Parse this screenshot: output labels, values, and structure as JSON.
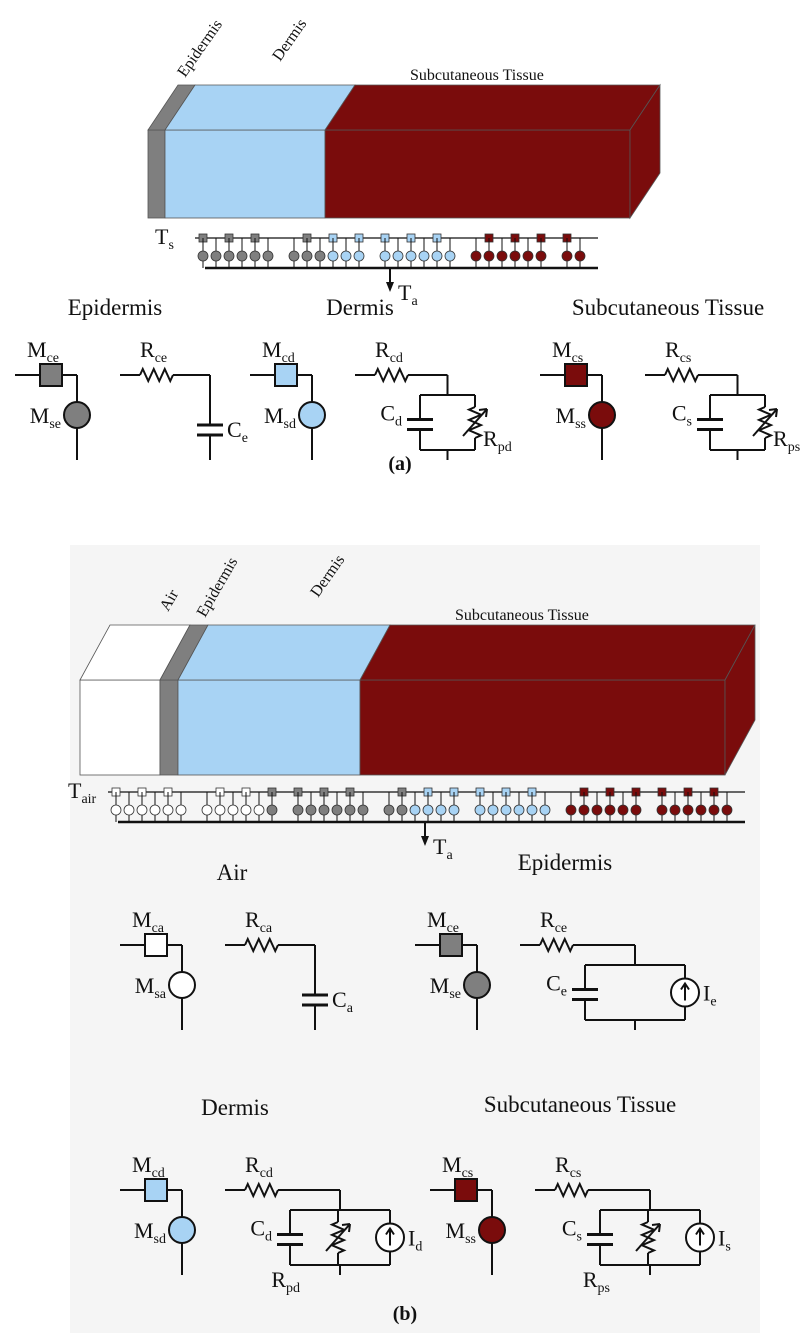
{
  "panel_a": {
    "layers": [
      "Epidermis",
      "Dermis",
      "Subcutaneous Tissue"
    ],
    "surface_node": {
      "base": "T",
      "sub": "s"
    },
    "ambient_node": {
      "base": "T",
      "sub": "a"
    },
    "groups": [
      {
        "title": "Epidermis",
        "labels": [
          {
            "base": "M",
            "sub": "ce"
          },
          {
            "base": "M",
            "sub": "se"
          },
          {
            "base": "R",
            "sub": "ce"
          },
          {
            "base": "C",
            "sub": "e"
          }
        ]
      },
      {
        "title": "Dermis",
        "labels": [
          {
            "base": "M",
            "sub": "cd"
          },
          {
            "base": "M",
            "sub": "sd"
          },
          {
            "base": "R",
            "sub": "cd"
          },
          {
            "base": "C",
            "sub": "d"
          },
          {
            "base": "R",
            "sub": "pd"
          }
        ]
      },
      {
        "title": "Subcutaneous Tissue",
        "labels": [
          {
            "base": "M",
            "sub": "cs"
          },
          {
            "base": "M",
            "sub": "ss"
          },
          {
            "base": "R",
            "sub": "cs"
          },
          {
            "base": "C",
            "sub": "s"
          },
          {
            "base": "R",
            "sub": "ps"
          }
        ]
      }
    ],
    "caption": "(a)"
  },
  "panel_b": {
    "layers": [
      "Air",
      "Epidermis",
      "Dermis",
      "Subcutaneous Tissue"
    ],
    "surface_node": {
      "base": "T",
      "sub": "air"
    },
    "ambient_node": {
      "base": "T",
      "sub": "a"
    },
    "groups": [
      {
        "title": "Air",
        "labels": [
          {
            "base": "M",
            "sub": "ca"
          },
          {
            "base": "M",
            "sub": "sa"
          },
          {
            "base": "R",
            "sub": "ca"
          },
          {
            "base": "C",
            "sub": "a"
          }
        ]
      },
      {
        "title": "Epidermis",
        "labels": [
          {
            "base": "M",
            "sub": "ce"
          },
          {
            "base": "M",
            "sub": "se"
          },
          {
            "base": "R",
            "sub": "ce"
          },
          {
            "base": "C",
            "sub": "e"
          },
          {
            "base": "I",
            "sub": "e"
          }
        ]
      },
      {
        "title": "Dermis",
        "labels": [
          {
            "base": "M",
            "sub": "cd"
          },
          {
            "base": "M",
            "sub": "sd"
          },
          {
            "base": "R",
            "sub": "cd"
          },
          {
            "base": "C",
            "sub": "d"
          },
          {
            "base": "R",
            "sub": "pd"
          },
          {
            "base": "I",
            "sub": "d"
          }
        ]
      },
      {
        "title": "Subcutaneous Tissue",
        "labels": [
          {
            "base": "M",
            "sub": "cs"
          },
          {
            "base": "M",
            "sub": "ss"
          },
          {
            "base": "R",
            "sub": "cs"
          },
          {
            "base": "C",
            "sub": "s"
          },
          {
            "base": "R",
            "sub": "ps"
          },
          {
            "base": "I",
            "sub": "s"
          }
        ]
      }
    ],
    "caption": "(b)"
  }
}
